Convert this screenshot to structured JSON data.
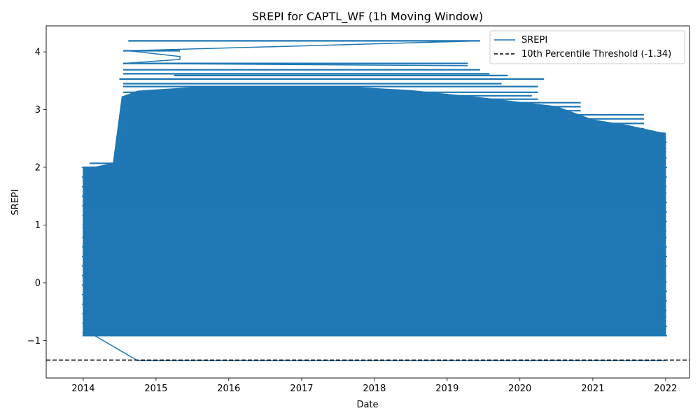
{
  "chart_data": {
    "type": "line",
    "title": "SREPI for CAPTL_WF (1h Moving Window)",
    "xlabel": "Date",
    "ylabel": "SREPI",
    "xlim": [
      "2013-06-29",
      "2022-05-01"
    ],
    "ylim": [
      -1.65,
      4.45
    ],
    "x_ticks": [
      "2014",
      "2015",
      "2016",
      "2017",
      "2018",
      "2019",
      "2020",
      "2021",
      "2022"
    ],
    "y_ticks": [
      "−1",
      "0",
      "1",
      "2",
      "3",
      "4"
    ],
    "y_tick_values": [
      -1,
      0,
      1,
      2,
      3,
      4
    ],
    "grid": false,
    "legend_position": "top-right",
    "series": [
      {
        "name": "SREPI",
        "color": "#1f77b4",
        "style": "solid",
        "description_band": {
          "x_start": "2014-01-01",
          "x_end": "2022-01-01",
          "lower": -0.92
        },
        "upper_envelope": [
          {
            "x": "2014-01-01",
            "y": 2.0
          },
          {
            "x": "2014-03-01",
            "y": 2.0
          },
          {
            "x": "2014-06-01",
            "y": 2.07
          },
          {
            "x": "2014-07-15",
            "y": 3.22
          },
          {
            "x": "2014-10-01",
            "y": 3.32
          },
          {
            "x": "2015-07-01",
            "y": 3.38
          },
          {
            "x": "2016-07-01",
            "y": 3.4
          },
          {
            "x": "2017-07-01",
            "y": 3.4
          },
          {
            "x": "2018-07-01",
            "y": 3.33
          },
          {
            "x": "2019-07-01",
            "y": 3.2
          },
          {
            "x": "2020-07-01",
            "y": 3.05
          },
          {
            "x": "2021-01-01",
            "y": 2.82
          },
          {
            "x": "2021-07-01",
            "y": 2.72
          },
          {
            "x": "2021-12-31",
            "y": 2.58
          }
        ],
        "streaks": [
          {
            "x1": "2014-08-15",
            "x2": "2019-06-15",
            "y": 4.19
          },
          {
            "x1": "2014-07-20",
            "x2": "2015-05-01",
            "y": 4.02
          },
          {
            "x1": "2015-05-01",
            "x2": "2015-05-01",
            "y": 3.92
          },
          {
            "x1": "2014-07-20",
            "x2": "2019-04-15",
            "y": 3.8
          },
          {
            "x1": "2014-07-20",
            "x2": "2019-06-15",
            "y": 3.69
          },
          {
            "x1": "2014-07-20",
            "x2": "2019-08-01",
            "y": 3.62
          },
          {
            "x1": "2015-04-01",
            "x2": "2019-11-01",
            "y": 3.59
          },
          {
            "x1": "2014-07-01",
            "x2": "2020-05-01",
            "y": 3.53
          },
          {
            "x1": "2014-07-20",
            "x2": "2019-10-01",
            "y": 3.45
          },
          {
            "x1": "2014-07-20",
            "x2": "2020-04-01",
            "y": 3.4
          },
          {
            "x1": "2014-07-20",
            "x2": "2020-04-01",
            "y": 3.3
          },
          {
            "x1": "2014-10-15",
            "x2": "2020-03-01",
            "y": 3.24
          },
          {
            "x1": "2014-07-20",
            "x2": "2020-04-01",
            "y": 3.18
          },
          {
            "x1": "2014-09-01",
            "x2": "2020-11-01",
            "y": 3.12
          },
          {
            "x1": "2014-07-20",
            "x2": "2020-11-01",
            "y": 3.05
          },
          {
            "x1": "2014-08-15",
            "x2": "2020-11-01",
            "y": 2.98
          },
          {
            "x1": "2014-07-20",
            "x2": "2021-09-15",
            "y": 2.91
          },
          {
            "x1": "2014-07-20",
            "x2": "2021-09-15",
            "y": 2.84
          },
          {
            "x1": "2014-07-20",
            "x2": "2021-09-15",
            "y": 2.76
          },
          {
            "x1": "2014-10-15",
            "x2": "2021-09-15",
            "y": 2.67
          },
          {
            "x1": "2014-07-20",
            "x2": "2021-12-31",
            "y": 2.59
          },
          {
            "x1": "2014-07-20",
            "x2": "2021-12-31",
            "y": 2.53
          },
          {
            "x1": "2014-07-20",
            "x2": "2021-12-31",
            "y": 2.46
          },
          {
            "x1": "2014-07-20",
            "x2": "2021-12-31",
            "y": 2.4
          },
          {
            "x1": "2014-07-20",
            "x2": "2021-12-31",
            "y": 2.32
          },
          {
            "x1": "2014-07-20",
            "x2": "2021-12-15",
            "y": 2.25
          },
          {
            "x1": "2014-07-20",
            "x2": "2021-12-15",
            "y": 2.16
          },
          {
            "x1": "2014-02-01",
            "x2": "2021-12-31",
            "y": 2.07
          },
          {
            "x1": "2014-01-01",
            "x2": "2021-12-31",
            "y": 2.0
          },
          {
            "x1": "2014-01-01",
            "x2": "2021-12-31",
            "y": 1.94
          },
          {
            "x1": "2014-06-01",
            "x2": "2021-12-31",
            "y": 1.87
          },
          {
            "x1": "2014-01-01",
            "x2": "2021-12-31",
            "y": 1.81
          },
          {
            "x1": "2014-02-15",
            "x2": "2021-12-31",
            "y": 1.74
          },
          {
            "x1": "2014-01-01",
            "x2": "2021-12-31",
            "y": 1.68
          },
          {
            "x1": "2014-01-01",
            "x2": "2021-12-31",
            "y": 1.61
          },
          {
            "x1": "2014-01-01",
            "x2": "2021-12-31",
            "y": 1.55
          },
          {
            "x1": "2014-02-15",
            "x2": "2021-12-31",
            "y": 1.48
          },
          {
            "x1": "2014-02-15",
            "x2": "2021-12-31",
            "y": 1.42
          },
          {
            "x1": "2014-01-01",
            "x2": "2021-12-31",
            "y": 1.36
          }
        ],
        "tail": [
          {
            "x": "2014-01-01",
            "y": -0.78
          },
          {
            "x": "2014-03-01",
            "y": -0.92
          },
          {
            "x": "2014-10-01",
            "y": -1.35
          },
          {
            "x": "2021-12-31",
            "y": -1.35
          }
        ]
      },
      {
        "name": "10th Percentile Threshold (-1.34)",
        "color": "#000000",
        "style": "dashed",
        "y": -1.34
      }
    ]
  }
}
